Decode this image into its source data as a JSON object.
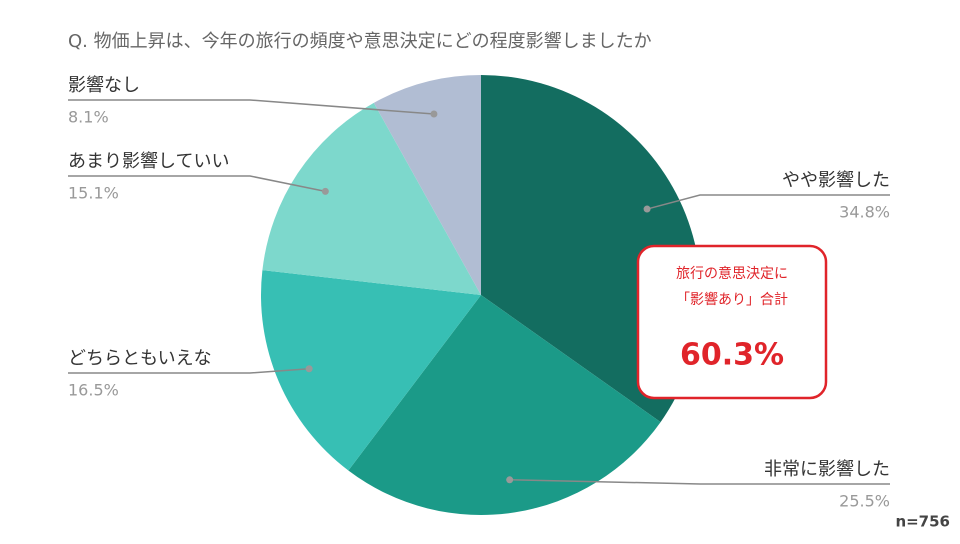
{
  "chart_data": {
    "type": "pie",
    "title": "Q. 物価上昇は、今年の旅行の頻度や意思決定にどの程度影響しましたか",
    "categories": [
      "やや影響した",
      "非常に影響した",
      "どちらともいえな",
      "あまり影響していい",
      "影響なし"
    ],
    "values": [
      34.8,
      25.5,
      16.5,
      15.1,
      8.1
    ],
    "value_labels": [
      "34.8%",
      "25.5%",
      "16.5%",
      "15.1%",
      "8.1%"
    ],
    "colors": [
      "#136d60",
      "#1b9a88",
      "#37bfb4",
      "#7dd8cc",
      "#b1bdd3"
    ],
    "annotation": {
      "lines": [
        "旅行の意思決定に",
        "「影響あり」合計"
      ],
      "total": "60.3%"
    },
    "note": "n=756"
  }
}
